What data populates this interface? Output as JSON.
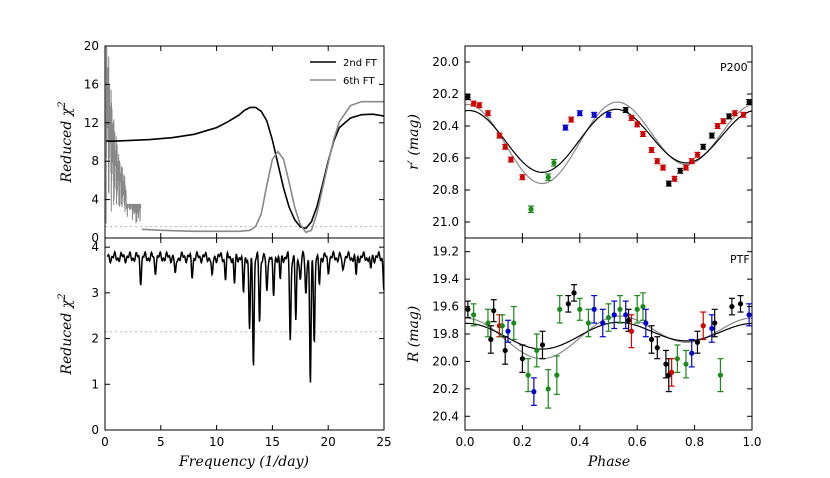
{
  "chart_data": [
    {
      "id": "chi2_top",
      "type": "line",
      "ylabel_text": "Reduced χ",
      "ylabel_sup": "2",
      "xlim": [
        0,
        25
      ],
      "ylim": [
        0,
        20
      ],
      "yticks": [
        "0",
        "4",
        "8",
        "12",
        "16",
        "20"
      ],
      "threshold": 1.2,
      "series": [
        {
          "name": "2nd FT",
          "color": "#000000",
          "x": [
            0.1,
            1,
            2,
            4,
            6,
            8,
            10,
            11,
            12,
            12.5,
            13,
            13.5,
            14,
            14.5,
            15,
            15.5,
            16,
            16.5,
            17,
            17.5,
            18,
            18.5,
            19,
            19.5,
            20,
            20.5,
            21,
            22,
            23,
            24,
            25
          ],
          "y": [
            10.1,
            10.1,
            10.15,
            10.25,
            10.45,
            10.8,
            11.5,
            12.1,
            12.8,
            13.3,
            13.6,
            13.6,
            13.2,
            12.2,
            10.2,
            7.7,
            5.2,
            3.2,
            1.9,
            1.15,
            1.0,
            1.7,
            3.3,
            5.6,
            8.0,
            10.1,
            11.5,
            12.5,
            12.85,
            12.9,
            12.7
          ]
        },
        {
          "name": "6th FT",
          "color": "#888888",
          "x": [
            3.3,
            5,
            8,
            10,
            12,
            13,
            13.5,
            14,
            14.5,
            15,
            15.5,
            16,
            16.5,
            17,
            17.5,
            18,
            18.5,
            19,
            19.5,
            20,
            20.5,
            21,
            22,
            23,
            24,
            25
          ],
          "y": [
            0.9,
            0.8,
            0.7,
            0.7,
            0.7,
            0.8,
            1.2,
            2.5,
            5.5,
            8.2,
            9.0,
            8.2,
            5.8,
            3.2,
            1.4,
            0.6,
            0.8,
            2.6,
            5.2,
            7.8,
            10.3,
            12.1,
            13.8,
            14.2,
            14.2,
            14.2
          ]
        }
      ]
    },
    {
      "id": "chi2_bottom",
      "type": "line",
      "xlabel_text": "Frequency (1/day)",
      "ylabel_text": "Reduced χ",
      "ylabel_sup": "2",
      "xlim": [
        0,
        25
      ],
      "ylim": [
        0,
        4.2
      ],
      "xticks": [
        "0",
        "5",
        "10",
        "15",
        "20",
        "25"
      ],
      "yticks": [
        "0",
        "1",
        "2",
        "3",
        "4"
      ],
      "threshold": 2.15,
      "dips": [
        {
          "x": 3.2,
          "y": 3.3
        },
        {
          "x": 4.5,
          "y": 3.5
        },
        {
          "x": 6.3,
          "y": 3.35
        },
        {
          "x": 7.8,
          "y": 3.4
        },
        {
          "x": 9.6,
          "y": 3.3
        },
        {
          "x": 10.8,
          "y": 3.35
        },
        {
          "x": 11.6,
          "y": 3.2
        },
        {
          "x": 12.4,
          "y": 3.0
        },
        {
          "x": 12.95,
          "y": 2.2
        },
        {
          "x": 13.3,
          "y": 1.5
        },
        {
          "x": 13.85,
          "y": 2.4
        },
        {
          "x": 14.5,
          "y": 3.0
        },
        {
          "x": 15.1,
          "y": 2.9
        },
        {
          "x": 15.7,
          "y": 3.3
        },
        {
          "x": 16.6,
          "y": 2.0
        },
        {
          "x": 17.1,
          "y": 2.4
        },
        {
          "x": 17.5,
          "y": 3.3
        },
        {
          "x": 18.0,
          "y": 3.0
        },
        {
          "x": 18.4,
          "y": 1.0
        },
        {
          "x": 18.75,
          "y": 2.0
        },
        {
          "x": 19.2,
          "y": 3.2
        },
        {
          "x": 20.0,
          "y": 3.5
        },
        {
          "x": 21.3,
          "y": 3.5
        },
        {
          "x": 22.5,
          "y": 3.4
        },
        {
          "x": 23.8,
          "y": 3.5
        },
        {
          "x": 25.0,
          "y": 3.1
        }
      ]
    },
    {
      "id": "lc_p200",
      "type": "scatter",
      "label": "P200",
      "ylabel_text": "r′ (mag)",
      "xlim": [
        0,
        1
      ],
      "ylim": [
        21.1,
        19.9
      ],
      "yticks": [
        "20.0",
        "20.2",
        "20.4",
        "20.6",
        "20.8",
        "21.0"
      ],
      "model_mean": 20.48,
      "model_amp1": 0.18,
      "model_amp2": 0.22,
      "points": [
        {
          "x": 0.01,
          "y": 20.22,
          "e": 0.015,
          "c": "#000000"
        },
        {
          "x": 0.03,
          "y": 20.26,
          "e": 0.015,
          "c": "#d00000"
        },
        {
          "x": 0.05,
          "y": 20.27,
          "e": 0.015,
          "c": "#d00000"
        },
        {
          "x": 0.08,
          "y": 20.32,
          "e": 0.015,
          "c": "#d00000"
        },
        {
          "x": 0.12,
          "y": 20.46,
          "e": 0.015,
          "c": "#d00000"
        },
        {
          "x": 0.14,
          "y": 20.53,
          "e": 0.015,
          "c": "#d00000"
        },
        {
          "x": 0.16,
          "y": 20.61,
          "e": 0.015,
          "c": "#d00000"
        },
        {
          "x": 0.2,
          "y": 20.72,
          "e": 0.015,
          "c": "#d00000"
        },
        {
          "x": 0.23,
          "y": 20.92,
          "e": 0.02,
          "c": "#1a8a1a"
        },
        {
          "x": 0.29,
          "y": 20.72,
          "e": 0.02,
          "c": "#1a8a1a"
        },
        {
          "x": 0.31,
          "y": 20.63,
          "e": 0.02,
          "c": "#1a8a1a"
        },
        {
          "x": 0.35,
          "y": 20.41,
          "e": 0.015,
          "c": "#0000d0"
        },
        {
          "x": 0.37,
          "y": 20.36,
          "e": 0.015,
          "c": "#d00000"
        },
        {
          "x": 0.4,
          "y": 20.32,
          "e": 0.015,
          "c": "#0000d0"
        },
        {
          "x": 0.45,
          "y": 20.33,
          "e": 0.015,
          "c": "#0000d0"
        },
        {
          "x": 0.5,
          "y": 20.33,
          "e": 0.015,
          "c": "#0000d0"
        },
        {
          "x": 0.56,
          "y": 20.3,
          "e": 0.015,
          "c": "#000000"
        },
        {
          "x": 0.58,
          "y": 20.35,
          "e": 0.015,
          "c": "#d00000"
        },
        {
          "x": 0.6,
          "y": 20.39,
          "e": 0.015,
          "c": "#d00000"
        },
        {
          "x": 0.62,
          "y": 20.45,
          "e": 0.015,
          "c": "#d00000"
        },
        {
          "x": 0.65,
          "y": 20.55,
          "e": 0.015,
          "c": "#d00000"
        },
        {
          "x": 0.67,
          "y": 20.62,
          "e": 0.015,
          "c": "#d00000"
        },
        {
          "x": 0.69,
          "y": 20.66,
          "e": 0.015,
          "c": "#d00000"
        },
        {
          "x": 0.71,
          "y": 20.76,
          "e": 0.015,
          "c": "#000000"
        },
        {
          "x": 0.73,
          "y": 20.73,
          "e": 0.015,
          "c": "#d00000"
        },
        {
          "x": 0.75,
          "y": 20.68,
          "e": 0.015,
          "c": "#000000"
        },
        {
          "x": 0.77,
          "y": 20.66,
          "e": 0.015,
          "c": "#d00000"
        },
        {
          "x": 0.79,
          "y": 20.62,
          "e": 0.015,
          "c": "#d00000"
        },
        {
          "x": 0.81,
          "y": 20.58,
          "e": 0.015,
          "c": "#d00000"
        },
        {
          "x": 0.83,
          "y": 20.53,
          "e": 0.015,
          "c": "#000000"
        },
        {
          "x": 0.86,
          "y": 20.46,
          "e": 0.015,
          "c": "#000000"
        },
        {
          "x": 0.88,
          "y": 20.4,
          "e": 0.015,
          "c": "#d00000"
        },
        {
          "x": 0.9,
          "y": 20.37,
          "e": 0.015,
          "c": "#d00000"
        },
        {
          "x": 0.92,
          "y": 20.34,
          "e": 0.015,
          "c": "#000000"
        },
        {
          "x": 0.94,
          "y": 20.32,
          "e": 0.015,
          "c": "#d00000"
        },
        {
          "x": 0.97,
          "y": 20.33,
          "e": 0.015,
          "c": "#d00000"
        },
        {
          "x": 0.99,
          "y": 20.25,
          "e": 0.015,
          "c": "#000000"
        }
      ]
    },
    {
      "id": "lc_ptf",
      "type": "scatter",
      "label": "PTF",
      "xlabel_text": "Phase",
      "ylabel_text": "R (mag)",
      "xlim": [
        0,
        1
      ],
      "ylim": [
        20.5,
        19.1
      ],
      "xticks": [
        "0.0",
        "0.2",
        "0.4",
        "0.6",
        "0.8",
        "1.0"
      ],
      "yticks": [
        "19.2",
        "19.4",
        "19.6",
        "19.8",
        "20.0",
        "20.2",
        "20.4"
      ],
      "model_mean": 19.8,
      "model_amp1": 0.08,
      "model_amp2": 0.12,
      "points": [
        {
          "x": 0.01,
          "y": 19.62,
          "e": 0.06,
          "c": "#000000"
        },
        {
          "x": 0.03,
          "y": 19.66,
          "e": 0.08,
          "c": "#1a8a1a"
        },
        {
          "x": 0.08,
          "y": 19.72,
          "e": 0.1,
          "c": "#1a8a1a"
        },
        {
          "x": 0.09,
          "y": 19.84,
          "e": 0.1,
          "c": "#000000"
        },
        {
          "x": 0.1,
          "y": 19.63,
          "e": 0.08,
          "c": "#000000"
        },
        {
          "x": 0.12,
          "y": 19.74,
          "e": 0.08,
          "c": "#d00000"
        },
        {
          "x": 0.13,
          "y": 19.74,
          "e": 0.08,
          "c": "#1a8a1a"
        },
        {
          "x": 0.14,
          "y": 19.92,
          "e": 0.1,
          "c": "#000000"
        },
        {
          "x": 0.15,
          "y": 19.78,
          "e": 0.08,
          "c": "#0000d0"
        },
        {
          "x": 0.17,
          "y": 19.72,
          "e": 0.12,
          "c": "#1a8a1a"
        },
        {
          "x": 0.2,
          "y": 19.98,
          "e": 0.1,
          "c": "#000000"
        },
        {
          "x": 0.22,
          "y": 20.1,
          "e": 0.12,
          "c": "#1a8a1a"
        },
        {
          "x": 0.24,
          "y": 20.22,
          "e": 0.1,
          "c": "#0000d0"
        },
        {
          "x": 0.25,
          "y": 19.92,
          "e": 0.12,
          "c": "#1a8a1a"
        },
        {
          "x": 0.27,
          "y": 19.88,
          "e": 0.1,
          "c": "#000000"
        },
        {
          "x": 0.29,
          "y": 20.2,
          "e": 0.14,
          "c": "#1a8a1a"
        },
        {
          "x": 0.32,
          "y": 20.1,
          "e": 0.14,
          "c": "#1a8a1a"
        },
        {
          "x": 0.33,
          "y": 19.62,
          "e": 0.1,
          "c": "#1a8a1a"
        },
        {
          "x": 0.36,
          "y": 19.58,
          "e": 0.06,
          "c": "#000000"
        },
        {
          "x": 0.38,
          "y": 19.5,
          "e": 0.06,
          "c": "#000000"
        },
        {
          "x": 0.4,
          "y": 19.62,
          "e": 0.08,
          "c": "#1a8a1a"
        },
        {
          "x": 0.43,
          "y": 19.72,
          "e": 0.1,
          "c": "#1a8a1a"
        },
        {
          "x": 0.45,
          "y": 19.62,
          "e": 0.1,
          "c": "#0000d0"
        },
        {
          "x": 0.48,
          "y": 19.72,
          "e": 0.1,
          "c": "#0000d0"
        },
        {
          "x": 0.5,
          "y": 19.68,
          "e": 0.1,
          "c": "#1a8a1a"
        },
        {
          "x": 0.52,
          "y": 19.66,
          "e": 0.1,
          "c": "#0000d0"
        },
        {
          "x": 0.54,
          "y": 19.62,
          "e": 0.1,
          "c": "#1a8a1a"
        },
        {
          "x": 0.56,
          "y": 19.66,
          "e": 0.1,
          "c": "#0000d0"
        },
        {
          "x": 0.57,
          "y": 19.7,
          "e": 0.08,
          "c": "#000000"
        },
        {
          "x": 0.58,
          "y": 19.78,
          "e": 0.12,
          "c": "#d00000"
        },
        {
          "x": 0.6,
          "y": 19.62,
          "e": 0.1,
          "c": "#1a8a1a"
        },
        {
          "x": 0.62,
          "y": 19.6,
          "e": 0.1,
          "c": "#1a8a1a"
        },
        {
          "x": 0.63,
          "y": 19.72,
          "e": 0.1,
          "c": "#0000d0"
        },
        {
          "x": 0.65,
          "y": 19.84,
          "e": 0.1,
          "c": "#000000"
        },
        {
          "x": 0.67,
          "y": 19.9,
          "e": 0.08,
          "c": "#000000"
        },
        {
          "x": 0.7,
          "y": 20.02,
          "e": 0.1,
          "c": "#000000"
        },
        {
          "x": 0.71,
          "y": 20.1,
          "e": 0.12,
          "c": "#000000"
        },
        {
          "x": 0.72,
          "y": 20.08,
          "e": 0.1,
          "c": "#d00000"
        },
        {
          "x": 0.74,
          "y": 19.98,
          "e": 0.1,
          "c": "#1a8a1a"
        },
        {
          "x": 0.77,
          "y": 20.02,
          "e": 0.1,
          "c": "#1a8a1a"
        },
        {
          "x": 0.79,
          "y": 19.94,
          "e": 0.1,
          "c": "#0000d0"
        },
        {
          "x": 0.81,
          "y": 19.86,
          "e": 0.08,
          "c": "#000000"
        },
        {
          "x": 0.83,
          "y": 19.74,
          "e": 0.1,
          "c": "#d00000"
        },
        {
          "x": 0.86,
          "y": 19.76,
          "e": 0.1,
          "c": "#0000d0"
        },
        {
          "x": 0.87,
          "y": 19.72,
          "e": 0.1,
          "c": "#000000"
        },
        {
          "x": 0.89,
          "y": 20.1,
          "e": 0.12,
          "c": "#1a8a1a"
        },
        {
          "x": 0.93,
          "y": 19.6,
          "e": 0.06,
          "c": "#000000"
        },
        {
          "x": 0.96,
          "y": 19.58,
          "e": 0.06,
          "c": "#000000"
        },
        {
          "x": 0.99,
          "y": 19.66,
          "e": 0.08,
          "c": "#0000d0"
        }
      ]
    }
  ]
}
